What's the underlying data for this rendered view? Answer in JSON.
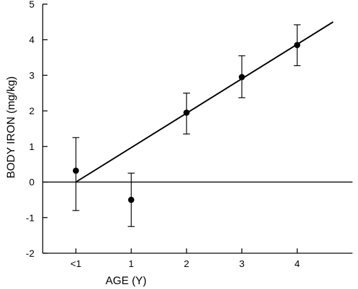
{
  "chart_data": {
    "type": "scatter",
    "title": "",
    "xlabel": "AGE (Y)",
    "ylabel": "BODY IRON (mg/kg)",
    "x_positions": [
      0,
      1,
      2,
      3,
      4
    ],
    "x_tick_labels": [
      "<1",
      "1",
      "2",
      "3",
      "4"
    ],
    "xlim": [
      -0.6,
      5
    ],
    "ylim": [
      -2,
      5
    ],
    "y_ticks": [
      -2,
      -1,
      0,
      1,
      2,
      3,
      4,
      5
    ],
    "y_tick_labels": [
      "-2",
      "-1",
      "0",
      "1",
      "2",
      "3",
      "4",
      "5"
    ],
    "grid": false,
    "reference_line_y": 0,
    "series": [
      {
        "points": [
          {
            "x": 0,
            "y": 0.32,
            "err_low": -0.8,
            "err_high": 1.25
          },
          {
            "x": 1,
            "y": -0.5,
            "err_low": -1.25,
            "err_high": 0.25
          },
          {
            "x": 2,
            "y": 1.95,
            "err_low": 1.35,
            "err_high": 2.5
          },
          {
            "x": 3,
            "y": 2.95,
            "err_low": 2.37,
            "err_high": 3.55
          },
          {
            "x": 4,
            "y": 3.85,
            "err_low": 3.27,
            "err_high": 4.42
          }
        ]
      }
    ],
    "regression_line": {
      "x_start": 0,
      "y_start": 0.0,
      "x_end": 4.65,
      "y_end": 4.5
    }
  }
}
